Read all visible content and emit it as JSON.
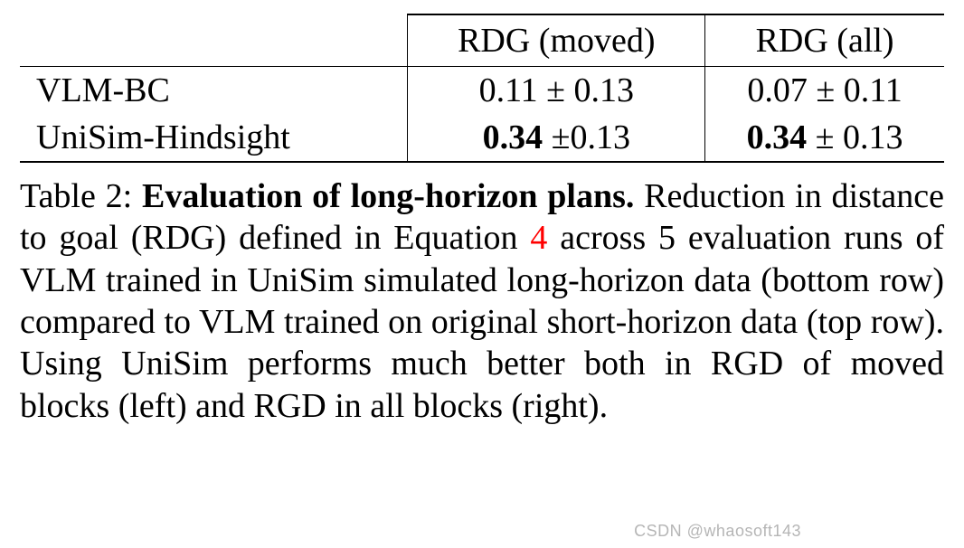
{
  "table": {
    "columns": [
      "",
      "RDG (moved)",
      "RDG (all)"
    ],
    "rows": [
      {
        "label": "VLM-BC",
        "c1_val": "0.11",
        "c1_err": "0.13",
        "c2_val": "0.07",
        "c2_err": "0.11",
        "bold": false
      },
      {
        "label": "UniSim-Hindsight",
        "c1_val": "0.34",
        "c1_err": "0.13",
        "c2_val": "0.34",
        "c2_err": "0.13",
        "bold": true
      }
    ],
    "font_size_pt": 38,
    "border_color": "#000000",
    "background_color": "#ffffff"
  },
  "caption": {
    "label": "Table 2:",
    "title": "Evaluation of long-horizon plans.",
    "body_pre": " Reduction in distance to goal (RDG) defined in Equation ",
    "eq_ref": "4",
    "eq_ref_color": "#ff0000",
    "body_post": " across 5 evaluation runs of VLM trained in UniSim simulated long-horizon data (bottom row) compared to VLM trained on original short-horizon data (top row). Using UniSim performs much better both in RGD of moved blocks (left) and RGD in all blocks (right).",
    "font_size_pt": 38,
    "text_color": "#000000"
  },
  "watermark": "CSDN @whaosoft143"
}
